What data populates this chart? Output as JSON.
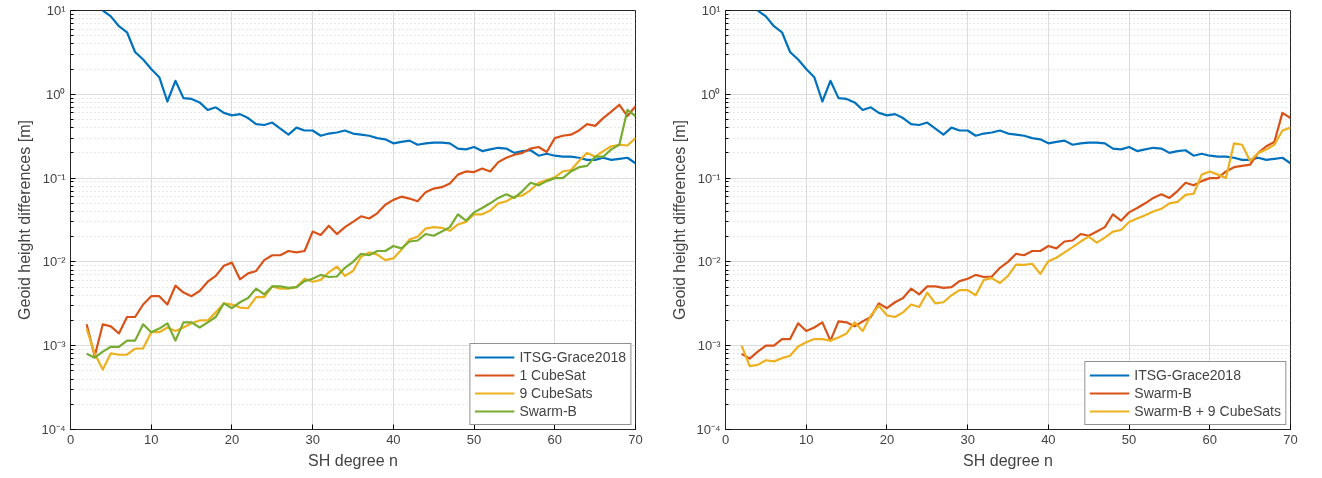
{
  "chart_data": [
    {
      "type": "line",
      "xlabel": "SH degree n",
      "ylabel": "Geoid height differences [m]",
      "log": "y",
      "grid": true,
      "legend": "bottom right",
      "line_style": "solid",
      "marker": "none",
      "xlim": [
        0,
        70
      ],
      "ylim": [
        0.0001,
        10
      ],
      "xticks": [
        0,
        10,
        20,
        30,
        40,
        50,
        60,
        70
      ],
      "yticks": [
        {
          "value": 0.0001,
          "label": "10⁻⁴"
        },
        {
          "value": 0.001,
          "label": "10⁻³"
        },
        {
          "value": 0.01,
          "label": "10⁻²"
        },
        {
          "value": 0.1,
          "label": "10⁻¹"
        },
        {
          "value": 1,
          "label": "10⁰"
        },
        {
          "value": 10,
          "label": "10¹"
        }
      ],
      "x": [
        2,
        3,
        4,
        5,
        6,
        7,
        8,
        9,
        10,
        11,
        12,
        13,
        14,
        15,
        16,
        17,
        18,
        19,
        20,
        21,
        22,
        23,
        24,
        25,
        26,
        27,
        28,
        29,
        30,
        31,
        32,
        33,
        34,
        35,
        36,
        37,
        38,
        39,
        40,
        41,
        42,
        43,
        44,
        45,
        46,
        47,
        48,
        49,
        50,
        51,
        52,
        53,
        54,
        55,
        56,
        57,
        58,
        59,
        60,
        61,
        62,
        63,
        64,
        65,
        66,
        67,
        68,
        69,
        70
      ],
      "series": [
        {
          "name": "ITSG-Grace2018",
          "color": "#0072bd",
          "x": [
            4,
            5,
            6,
            7,
            8,
            9,
            10,
            11,
            12,
            13,
            14,
            15,
            16,
            17,
            18,
            19,
            20,
            21,
            22,
            23,
            24,
            25,
            26,
            27,
            28,
            29,
            30,
            31,
            32,
            33,
            34,
            35,
            36,
            37,
            38,
            39,
            40,
            41,
            42,
            43,
            44,
            45,
            46,
            47,
            48,
            49,
            50,
            51,
            52,
            53,
            54,
            55,
            56,
            57,
            58,
            59,
            60,
            61,
            62,
            63,
            64,
            65,
            66,
            67,
            68,
            69,
            70
          ],
          "values": [
            10,
            8.5,
            6.5,
            5.5,
            3.2,
            2.6,
            2.0,
            1.6,
            0.82,
            1.45,
            0.9,
            0.88,
            0.8,
            0.65,
            0.7,
            0.6,
            0.56,
            0.58,
            0.52,
            0.44,
            0.43,
            0.46,
            0.39,
            0.33,
            0.4,
            0.37,
            0.37,
            0.32,
            0.34,
            0.35,
            0.37,
            0.34,
            0.33,
            0.32,
            0.3,
            0.29,
            0.26,
            0.27,
            0.28,
            0.25,
            0.26,
            0.265,
            0.265,
            0.26,
            0.225,
            0.22,
            0.235,
            0.21,
            0.22,
            0.23,
            0.225,
            0.2,
            0.21,
            0.215,
            0.185,
            0.195,
            0.185,
            0.18,
            0.18,
            0.175,
            0.165,
            0.165,
            0.175,
            0.165,
            0.17,
            0.175,
            0.15
          ]
        },
        {
          "name": "1 CubeSat",
          "color": "#d95319",
          "values": [
            0.0018,
            0.00075,
            0.0018,
            0.0017,
            0.0014,
            0.0022,
            0.0022,
            0.0031,
            0.0039,
            0.0039,
            0.0031,
            0.0052,
            0.0043,
            0.0039,
            0.0045,
            0.0058,
            0.0068,
            0.009,
            0.0098,
            0.0062,
            0.0073,
            0.0078,
            0.0105,
            0.012,
            0.012,
            0.0135,
            0.013,
            0.0135,
            0.023,
            0.021,
            0.027,
            0.0215,
            0.026,
            0.03,
            0.035,
            0.033,
            0.038,
            0.048,
            0.055,
            0.06,
            0.057,
            0.053,
            0.068,
            0.075,
            0.078,
            0.086,
            0.11,
            0.12,
            0.118,
            0.13,
            0.12,
            0.155,
            0.175,
            0.19,
            0.2,
            0.225,
            0.235,
            0.205,
            0.3,
            0.32,
            0.33,
            0.37,
            0.44,
            0.42,
            0.52,
            0.62,
            0.75,
            0.55,
            0.72
          ]
        },
        {
          "name": "9 CubeSats",
          "color": "#edb120",
          "values": [
            0.0016,
            0.0008,
            0.00052,
            0.00081,
            0.00078,
            0.00078,
            0.00092,
            0.00093,
            0.00145,
            0.00145,
            0.00165,
            0.0015,
            0.00165,
            0.00185,
            0.002,
            0.002,
            0.0025,
            0.0032,
            0.0031,
            0.00285,
            0.0028,
            0.0038,
            0.0038,
            0.0051,
            0.0048,
            0.0048,
            0.005,
            0.0063,
            0.0058,
            0.0061,
            0.0075,
            0.0088,
            0.0068,
            0.0078,
            0.0115,
            0.013,
            0.0122,
            0.0105,
            0.011,
            0.014,
            0.0185,
            0.02,
            0.025,
            0.026,
            0.0255,
            0.0235,
            0.028,
            0.03,
            0.037,
            0.037,
            0.041,
            0.05,
            0.053,
            0.06,
            0.062,
            0.072,
            0.088,
            0.095,
            0.102,
            0.12,
            0.125,
            0.16,
            0.2,
            0.18,
            0.21,
            0.24,
            0.25,
            0.245,
            0.3
          ]
        },
        {
          "name": "Swarm-B",
          "color": "#77ac30",
          "values": [
            0.0008,
            0.00072,
            0.00085,
            0.00097,
            0.00097,
            0.00115,
            0.00115,
            0.0018,
            0.00145,
            0.0016,
            0.00185,
            0.00115,
            0.0019,
            0.0019,
            0.00165,
            0.0019,
            0.0022,
            0.0032,
            0.0028,
            0.0033,
            0.0037,
            0.0048,
            0.0041,
            0.0051,
            0.0051,
            0.0049,
            0.005,
            0.0059,
            0.0063,
            0.007,
            0.0066,
            0.0067,
            0.0085,
            0.01,
            0.0125,
            0.012,
            0.0135,
            0.0135,
            0.0155,
            0.0145,
            0.0175,
            0.018,
            0.0215,
            0.0205,
            0.023,
            0.026,
            0.037,
            0.031,
            0.039,
            0.044,
            0.05,
            0.058,
            0.064,
            0.058,
            0.07,
            0.088,
            0.082,
            0.092,
            0.1,
            0.1,
            0.12,
            0.135,
            0.14,
            0.18,
            0.18,
            0.22,
            0.25,
            0.65,
            0.55
          ]
        }
      ]
    },
    {
      "type": "line",
      "xlabel": "SH degree n",
      "ylabel": "Geoid height differences [m]",
      "log": "y",
      "grid": true,
      "legend": "bottom right",
      "line_style": "solid",
      "marker": "none",
      "xlim": [
        0,
        70
      ],
      "ylim": [
        0.0001,
        10
      ],
      "xticks": [
        0,
        10,
        20,
        30,
        40,
        50,
        60,
        70
      ],
      "yticks": [
        {
          "value": 0.0001,
          "label": "10⁻⁴"
        },
        {
          "value": 0.001,
          "label": "10⁻³"
        },
        {
          "value": 0.01,
          "label": "10⁻²"
        },
        {
          "value": 0.1,
          "label": "10⁻¹"
        },
        {
          "value": 1,
          "label": "10⁰"
        },
        {
          "value": 10,
          "label": "10¹"
        }
      ],
      "x": [
        2,
        3,
        4,
        5,
        6,
        7,
        8,
        9,
        10,
        11,
        12,
        13,
        14,
        15,
        16,
        17,
        18,
        19,
        20,
        21,
        22,
        23,
        24,
        25,
        26,
        27,
        28,
        29,
        30,
        31,
        32,
        33,
        34,
        35,
        36,
        37,
        38,
        39,
        40,
        41,
        42,
        43,
        44,
        45,
        46,
        47,
        48,
        49,
        50,
        51,
        52,
        53,
        54,
        55,
        56,
        57,
        58,
        59,
        60,
        61,
        62,
        63,
        64,
        65,
        66,
        67,
        68,
        69,
        70
      ],
      "series": [
        {
          "name": "ITSG-Grace2018",
          "color": "#0072bd",
          "x": [
            4,
            5,
            6,
            7,
            8,
            9,
            10,
            11,
            12,
            13,
            14,
            15,
            16,
            17,
            18,
            19,
            20,
            21,
            22,
            23,
            24,
            25,
            26,
            27,
            28,
            29,
            30,
            31,
            32,
            33,
            34,
            35,
            36,
            37,
            38,
            39,
            40,
            41,
            42,
            43,
            44,
            45,
            46,
            47,
            48,
            49,
            50,
            51,
            52,
            53,
            54,
            55,
            56,
            57,
            58,
            59,
            60,
            61,
            62,
            63,
            64,
            65,
            66,
            67,
            68,
            69,
            70
          ],
          "values": [
            10,
            8.5,
            6.5,
            5.5,
            3.2,
            2.6,
            2.0,
            1.6,
            0.82,
            1.45,
            0.9,
            0.88,
            0.8,
            0.65,
            0.7,
            0.6,
            0.56,
            0.58,
            0.52,
            0.44,
            0.43,
            0.46,
            0.39,
            0.33,
            0.4,
            0.37,
            0.37,
            0.32,
            0.34,
            0.35,
            0.37,
            0.34,
            0.33,
            0.32,
            0.3,
            0.29,
            0.26,
            0.27,
            0.28,
            0.25,
            0.26,
            0.265,
            0.265,
            0.26,
            0.225,
            0.22,
            0.235,
            0.21,
            0.22,
            0.23,
            0.225,
            0.2,
            0.21,
            0.215,
            0.185,
            0.195,
            0.185,
            0.18,
            0.18,
            0.175,
            0.165,
            0.165,
            0.175,
            0.165,
            0.17,
            0.175,
            0.15
          ]
        },
        {
          "name": "Swarm-B",
          "color": "#d95319",
          "values": [
            0.0008,
            0.0007,
            0.00085,
            0.001,
            0.001,
            0.0012,
            0.0012,
            0.00185,
            0.0015,
            0.00165,
            0.0019,
            0.00115,
            0.00195,
            0.0019,
            0.0017,
            0.00195,
            0.0022,
            0.0032,
            0.0028,
            0.0033,
            0.0037,
            0.0048,
            0.0041,
            0.0051,
            0.0051,
            0.0049,
            0.005,
            0.0059,
            0.0063,
            0.007,
            0.0066,
            0.0067,
            0.0085,
            0.01,
            0.0125,
            0.012,
            0.0135,
            0.0135,
            0.0155,
            0.0145,
            0.0175,
            0.018,
            0.0215,
            0.0205,
            0.023,
            0.026,
            0.037,
            0.031,
            0.039,
            0.044,
            0.05,
            0.058,
            0.064,
            0.058,
            0.07,
            0.088,
            0.082,
            0.092,
            0.1,
            0.1,
            0.12,
            0.135,
            0.14,
            0.145,
            0.2,
            0.24,
            0.27,
            0.6,
            0.52
          ]
        },
        {
          "name": "Swarm-B + 9 CubeSats",
          "color": "#edb120",
          "values": [
            0.001,
            0.00057,
            0.00059,
            0.00067,
            0.00065,
            0.00071,
            0.00076,
            0.00098,
            0.0011,
            0.0012,
            0.0012,
            0.00115,
            0.00125,
            0.0014,
            0.0019,
            0.0015,
            0.0023,
            0.003,
            0.0023,
            0.0022,
            0.0025,
            0.0031,
            0.0029,
            0.0043,
            0.0032,
            0.0033,
            0.004,
            0.0046,
            0.0046,
            0.004,
            0.0061,
            0.0064,
            0.0056,
            0.0068,
            0.0093,
            0.0092,
            0.0095,
            0.0072,
            0.0102,
            0.0112,
            0.013,
            0.015,
            0.0175,
            0.02,
            0.017,
            0.0195,
            0.023,
            0.024,
            0.03,
            0.033,
            0.036,
            0.04,
            0.043,
            0.05,
            0.052,
            0.063,
            0.065,
            0.11,
            0.12,
            0.11,
            0.1,
            0.26,
            0.25,
            0.16,
            0.2,
            0.22,
            0.25,
            0.37,
            0.4
          ]
        }
      ]
    }
  ]
}
